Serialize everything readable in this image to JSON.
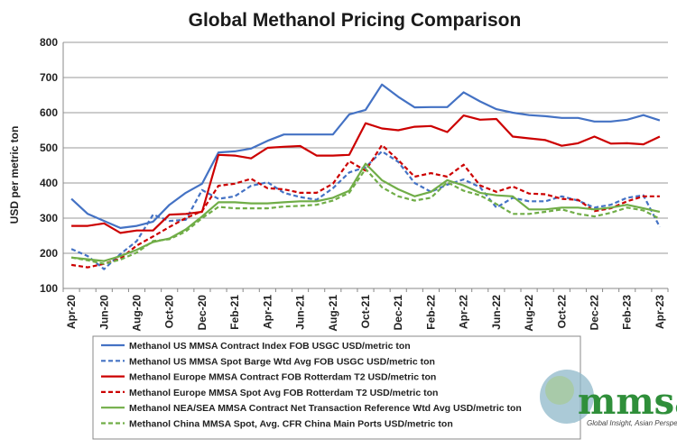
{
  "chart_data": {
    "type": "line",
    "title": "Global Methanol Pricing Comparison",
    "xlabel": "",
    "ylabel": "USD per metric ton",
    "ylim": [
      100,
      800
    ],
    "yticks": [
      100,
      200,
      300,
      400,
      500,
      600,
      700,
      800
    ],
    "grid": true,
    "legend_position": "bottom",
    "x": [
      "Apr-20",
      "May-20",
      "Jun-20",
      "Jul-20",
      "Aug-20",
      "Sep-20",
      "Oct-20",
      "Nov-20",
      "Dec-20",
      "Jan-21",
      "Feb-21",
      "Mar-21",
      "Apr-21",
      "May-21",
      "Jun-21",
      "Jul-21",
      "Aug-21",
      "Sep-21",
      "Oct-21",
      "Nov-21",
      "Dec-21",
      "Jan-22",
      "Feb-22",
      "Mar-22",
      "Apr-22",
      "May-22",
      "Jun-22",
      "Jul-22",
      "Aug-22",
      "Sep-22",
      "Oct-22",
      "Nov-22",
      "Dec-22",
      "Jan-23",
      "Feb-23",
      "Mar-23",
      "Apr-23"
    ],
    "tick_labels": [
      "Apr-20",
      "Jun-20",
      "Aug-20",
      "Oct-20",
      "Dec-20",
      "Feb-21",
      "Apr-21",
      "Jun-21",
      "Aug-21",
      "Oct-21",
      "Dec-21",
      "Feb-22",
      "Apr-22",
      "Jun-22",
      "Aug-22",
      "Oct-22",
      "Dec-22",
      "Feb-23",
      "Apr-23"
    ],
    "series": [
      {
        "name": "Methanol US MMSA Contract Index FOB USGC USD/metric ton",
        "color": "#4472c4",
        "dash": "solid",
        "values": [
          355,
          312,
          292,
          272,
          278,
          290,
          338,
          372,
          398,
          487,
          490,
          498,
          520,
          538,
          538,
          538,
          538,
          595,
          608,
          680,
          645,
          615,
          616,
          616,
          658,
          632,
          610,
          600,
          593,
          590,
          585,
          585,
          575,
          575,
          580,
          593,
          578
        ]
      },
      {
        "name": "Methanol US MMSA Spot Barge Wtd Avg FOB USGC USD/metric ton",
        "color": "#4472c4",
        "dash": "dashed",
        "values": [
          212,
          192,
          155,
          198,
          235,
          310,
          292,
          295,
          380,
          355,
          362,
          392,
          402,
          372,
          360,
          352,
          385,
          430,
          445,
          490,
          460,
          400,
          375,
          395,
          410,
          388,
          330,
          358,
          348,
          348,
          362,
          350,
          330,
          338,
          358,
          365,
          275
        ]
      },
      {
        "name": "Methanol Europe MMSA Contract FOB Rotterdam T2 USD/metric ton",
        "color": "#cc0000",
        "dash": "solid",
        "values": [
          278,
          278,
          285,
          258,
          265,
          265,
          310,
          312,
          318,
          480,
          478,
          470,
          500,
          503,
          505,
          478,
          478,
          480,
          570,
          555,
          550,
          560,
          562,
          545,
          592,
          580,
          582,
          532,
          527,
          522,
          506,
          513,
          532,
          512,
          513,
          510,
          532
        ]
      },
      {
        "name": "Methanol Europe MMSA Spot Avg FOB Rotterdam T2 USD/metric ton",
        "color": "#cc0000",
        "dash": "dashed",
        "values": [
          167,
          160,
          170,
          185,
          222,
          248,
          275,
          300,
          320,
          392,
          398,
          412,
          385,
          382,
          372,
          372,
          398,
          462,
          435,
          508,
          465,
          418,
          428,
          418,
          452,
          393,
          375,
          390,
          370,
          368,
          355,
          352,
          320,
          328,
          348,
          362,
          362
        ]
      },
      {
        "name": "Methanol NEA/SEA MMSA Contract Net Transaction Reference Wtd Avg USD/metric ton",
        "color": "#70ad47",
        "dash": "solid",
        "values": [
          188,
          183,
          178,
          192,
          210,
          232,
          242,
          268,
          305,
          345,
          345,
          342,
          342,
          345,
          348,
          348,
          358,
          378,
          455,
          408,
          382,
          362,
          375,
          408,
          393,
          372,
          365,
          362,
          325,
          325,
          330,
          330,
          325,
          330,
          338,
          328,
          318
        ]
      },
      {
        "name": "Methanol China MMSA Spot, Avg. CFR China Main Ports USD/metric ton",
        "color": "#70ad47",
        "dash": "dashed",
        "values": [
          188,
          180,
          170,
          182,
          202,
          235,
          240,
          262,
          300,
          332,
          328,
          328,
          328,
          333,
          335,
          338,
          350,
          372,
          440,
          388,
          362,
          350,
          358,
          402,
          378,
          365,
          340,
          312,
          312,
          318,
          325,
          312,
          305,
          315,
          330,
          322,
          298
        ]
      }
    ]
  },
  "logo": {
    "text": "mmsa",
    "tagline": "Global Insight, Asian Perspective"
  }
}
